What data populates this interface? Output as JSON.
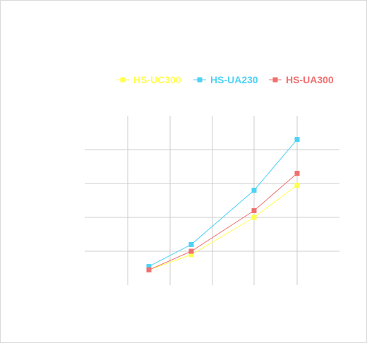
{
  "chart_data": {
    "type": "line",
    "title": "",
    "xlabel": "",
    "ylabel": "",
    "x": [
      1,
      2,
      3,
      4,
      5
    ],
    "ylim": [
      0,
      10
    ],
    "y_gridlines": [
      2,
      4,
      6,
      8
    ],
    "x_gridlines": [
      1,
      2,
      3,
      4,
      5
    ],
    "legend_position": "top",
    "grid": true,
    "series": [
      {
        "name": "HS-UC300",
        "color": "#ffff4d",
        "values": [
          0.9,
          1.8,
          4.0,
          5.9,
          null
        ]
      },
      {
        "name": "HS-UA230",
        "color": "#4dd2f5",
        "values": [
          1.1,
          2.4,
          5.6,
          8.6,
          null
        ]
      },
      {
        "name": "HS-UA300",
        "color": "#f07070",
        "values": [
          0.9,
          2.0,
          4.4,
          6.6,
          null
        ]
      }
    ]
  }
}
